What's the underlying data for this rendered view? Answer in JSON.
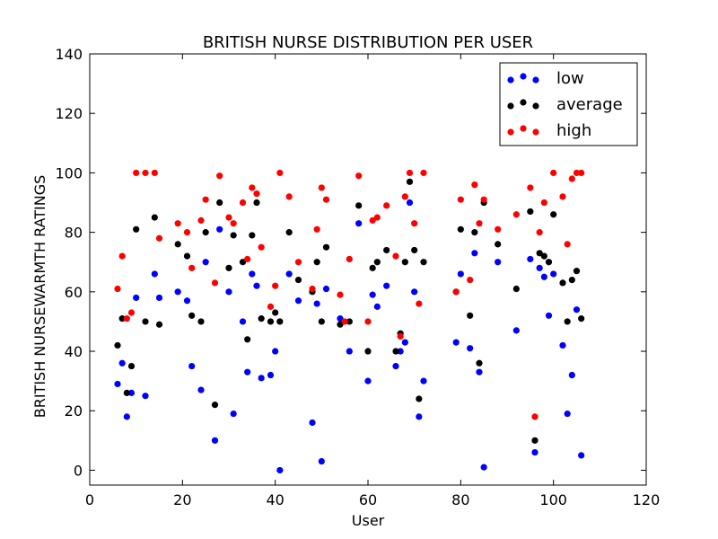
{
  "chart_data": {
    "type": "scatter",
    "title": "BRITISH NURSE DISTRIBUTION PER USER",
    "xlabel": "User",
    "ylabel": "BRITISH NURSEWARMTH RATINGS",
    "xlim": [
      0,
      120
    ],
    "ylim": [
      -5,
      140
    ],
    "xticks": [
      "0",
      "20",
      "40",
      "60",
      "80",
      "100",
      "120"
    ],
    "yticks": [
      "0",
      "20",
      "40",
      "60",
      "80",
      "100",
      "120",
      "140"
    ],
    "grid": false,
    "legend_position": "top-right",
    "series": [
      {
        "name": "low",
        "color": "#0000ff",
        "points": [
          [
            6,
            29
          ],
          [
            7,
            36
          ],
          [
            8,
            18
          ],
          [
            9,
            26
          ],
          [
            10,
            58
          ],
          [
            12,
            25
          ],
          [
            14,
            66
          ],
          [
            15,
            58
          ],
          [
            19,
            60
          ],
          [
            21,
            57
          ],
          [
            22,
            35
          ],
          [
            24,
            27
          ],
          [
            25,
            70
          ],
          [
            27,
            10
          ],
          [
            28,
            81
          ],
          [
            30,
            60
          ],
          [
            31,
            19
          ],
          [
            33,
            50
          ],
          [
            34,
            33
          ],
          [
            35,
            66
          ],
          [
            36,
            62
          ],
          [
            37,
            31
          ],
          [
            39,
            32
          ],
          [
            40,
            40
          ],
          [
            41,
            0
          ],
          [
            43,
            66
          ],
          [
            45,
            57
          ],
          [
            48,
            16
          ],
          [
            49,
            56
          ],
          [
            50,
            3
          ],
          [
            51,
            61
          ],
          [
            54,
            51
          ],
          [
            56,
            40
          ],
          [
            58,
            83
          ],
          [
            60,
            30
          ],
          [
            61,
            59
          ],
          [
            62,
            55
          ],
          [
            64,
            62
          ],
          [
            66,
            35
          ],
          [
            67,
            40
          ],
          [
            68,
            43
          ],
          [
            69,
            90
          ],
          [
            70,
            60
          ],
          [
            71,
            18
          ],
          [
            72,
            30
          ],
          [
            79,
            43
          ],
          [
            80,
            66
          ],
          [
            82,
            41
          ],
          [
            83,
            73
          ],
          [
            84,
            33
          ],
          [
            85,
            1
          ],
          [
            88,
            70
          ],
          [
            92,
            47
          ],
          [
            95,
            71
          ],
          [
            96,
            6
          ],
          [
            97,
            68
          ],
          [
            98,
            65
          ],
          [
            99,
            52
          ],
          [
            100,
            66
          ],
          [
            102,
            42
          ],
          [
            103,
            19
          ],
          [
            104,
            32
          ],
          [
            105,
            54
          ],
          [
            106,
            5
          ]
        ]
      },
      {
        "name": "average",
        "color": "#000000",
        "points": [
          [
            6,
            42
          ],
          [
            7,
            51
          ],
          [
            8,
            26
          ],
          [
            9,
            35
          ],
          [
            10,
            81
          ],
          [
            12,
            50
          ],
          [
            14,
            85
          ],
          [
            15,
            49
          ],
          [
            19,
            76
          ],
          [
            21,
            72
          ],
          [
            22,
            52
          ],
          [
            24,
            50
          ],
          [
            25,
            80
          ],
          [
            27,
            22
          ],
          [
            28,
            90
          ],
          [
            30,
            68
          ],
          [
            31,
            79
          ],
          [
            33,
            70
          ],
          [
            34,
            44
          ],
          [
            35,
            79
          ],
          [
            36,
            90
          ],
          [
            37,
            51
          ],
          [
            39,
            50
          ],
          [
            40,
            53
          ],
          [
            41,
            50
          ],
          [
            43,
            80
          ],
          [
            45,
            64
          ],
          [
            48,
            60
          ],
          [
            49,
            70
          ],
          [
            50,
            50
          ],
          [
            51,
            75
          ],
          [
            54,
            49
          ],
          [
            56,
            50
          ],
          [
            58,
            89
          ],
          [
            60,
            40
          ],
          [
            61,
            68
          ],
          [
            62,
            70
          ],
          [
            64,
            74
          ],
          [
            66,
            40
          ],
          [
            67,
            46
          ],
          [
            68,
            70
          ],
          [
            69,
            97
          ],
          [
            70,
            74
          ],
          [
            71,
            24
          ],
          [
            72,
            70
          ],
          [
            79,
            60
          ],
          [
            80,
            81
          ],
          [
            82,
            52
          ],
          [
            83,
            80
          ],
          [
            84,
            36
          ],
          [
            85,
            90
          ],
          [
            88,
            76
          ],
          [
            92,
            61
          ],
          [
            95,
            87
          ],
          [
            96,
            10
          ],
          [
            97,
            73
          ],
          [
            98,
            72
          ],
          [
            99,
            70
          ],
          [
            100,
            86
          ],
          [
            102,
            63
          ],
          [
            103,
            50
          ],
          [
            104,
            64
          ],
          [
            105,
            67
          ],
          [
            106,
            51
          ]
        ]
      },
      {
        "name": "high",
        "color": "#ff0000",
        "points": [
          [
            6,
            61
          ],
          [
            7,
            72
          ],
          [
            8,
            51
          ],
          [
            9,
            53
          ],
          [
            10,
            100
          ],
          [
            12,
            100
          ],
          [
            14,
            100
          ],
          [
            15,
            78
          ],
          [
            19,
            83
          ],
          [
            21,
            80
          ],
          [
            22,
            68
          ],
          [
            24,
            84
          ],
          [
            25,
            91
          ],
          [
            27,
            63
          ],
          [
            28,
            99
          ],
          [
            30,
            85
          ],
          [
            31,
            83
          ],
          [
            33,
            90
          ],
          [
            34,
            71
          ],
          [
            35,
            95
          ],
          [
            36,
            93
          ],
          [
            37,
            75
          ],
          [
            39,
            55
          ],
          [
            40,
            62
          ],
          [
            41,
            100
          ],
          [
            43,
            92
          ],
          [
            45,
            70
          ],
          [
            48,
            61
          ],
          [
            49,
            81
          ],
          [
            50,
            95
          ],
          [
            51,
            91
          ],
          [
            54,
            59
          ],
          [
            55,
            50
          ],
          [
            56,
            71
          ],
          [
            58,
            99
          ],
          [
            60,
            50
          ],
          [
            61,
            84
          ],
          [
            62,
            85
          ],
          [
            64,
            89
          ],
          [
            66,
            72
          ],
          [
            67,
            45
          ],
          [
            68,
            92
          ],
          [
            69,
            100
          ],
          [
            70,
            83
          ],
          [
            71,
            56
          ],
          [
            72,
            100
          ],
          [
            79,
            60
          ],
          [
            80,
            91
          ],
          [
            82,
            64
          ],
          [
            83,
            96
          ],
          [
            84,
            83
          ],
          [
            85,
            91
          ],
          [
            88,
            81
          ],
          [
            92,
            86
          ],
          [
            95,
            95
          ],
          [
            96,
            18
          ],
          [
            97,
            80
          ],
          [
            98,
            90
          ],
          [
            100,
            100
          ],
          [
            102,
            92
          ],
          [
            103,
            76
          ],
          [
            104,
            98
          ],
          [
            105,
            100
          ],
          [
            106,
            100
          ]
        ]
      }
    ]
  }
}
